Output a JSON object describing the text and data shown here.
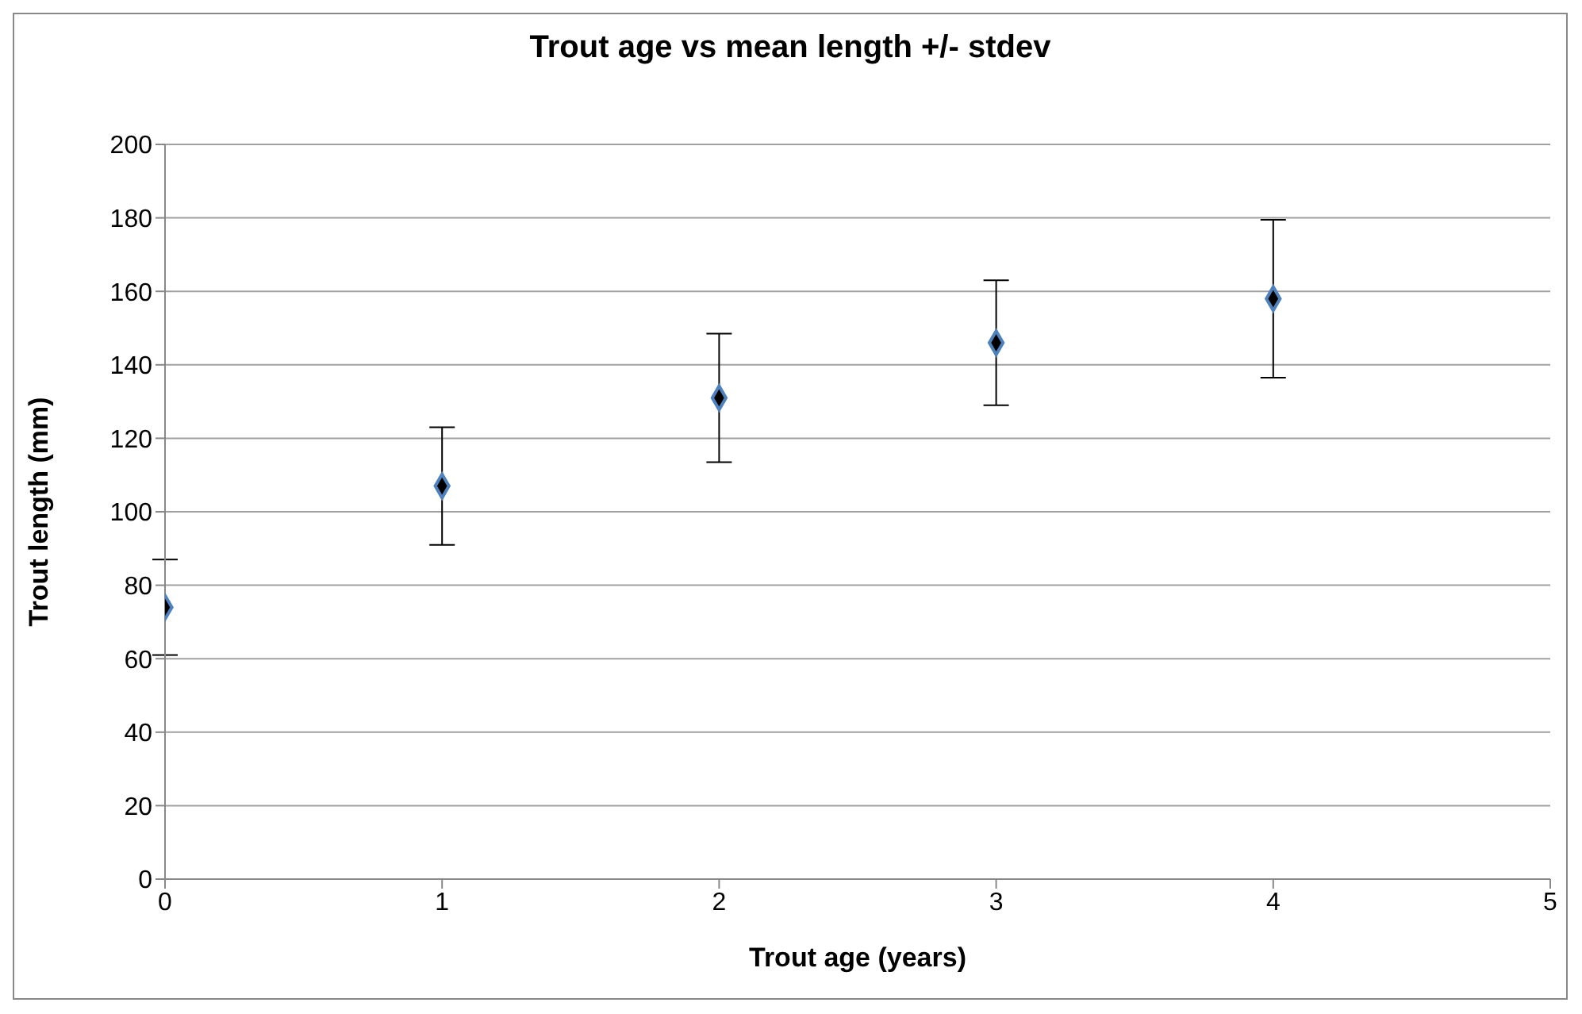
{
  "chart_data": {
    "type": "scatter",
    "title": "Trout age vs mean length +/- stdev",
    "xlabel": "Trout age (years)",
    "ylabel": "Trout length (mm)",
    "x": [
      0,
      1,
      2,
      3,
      4
    ],
    "values": [
      74,
      107,
      131,
      146,
      158
    ],
    "errors": [
      13,
      16,
      17.5,
      17,
      21.5
    ],
    "color": "#000000",
    "marker": "diamond",
    "xlim": [
      0,
      5
    ],
    "xticks": [
      0,
      1,
      2,
      3,
      4,
      5
    ],
    "ylim": [
      0,
      200
    ],
    "yticks": [
      0,
      20,
      40,
      60,
      80,
      100,
      120,
      140,
      160,
      180,
      200
    ],
    "grid": "y",
    "legend": false
  }
}
